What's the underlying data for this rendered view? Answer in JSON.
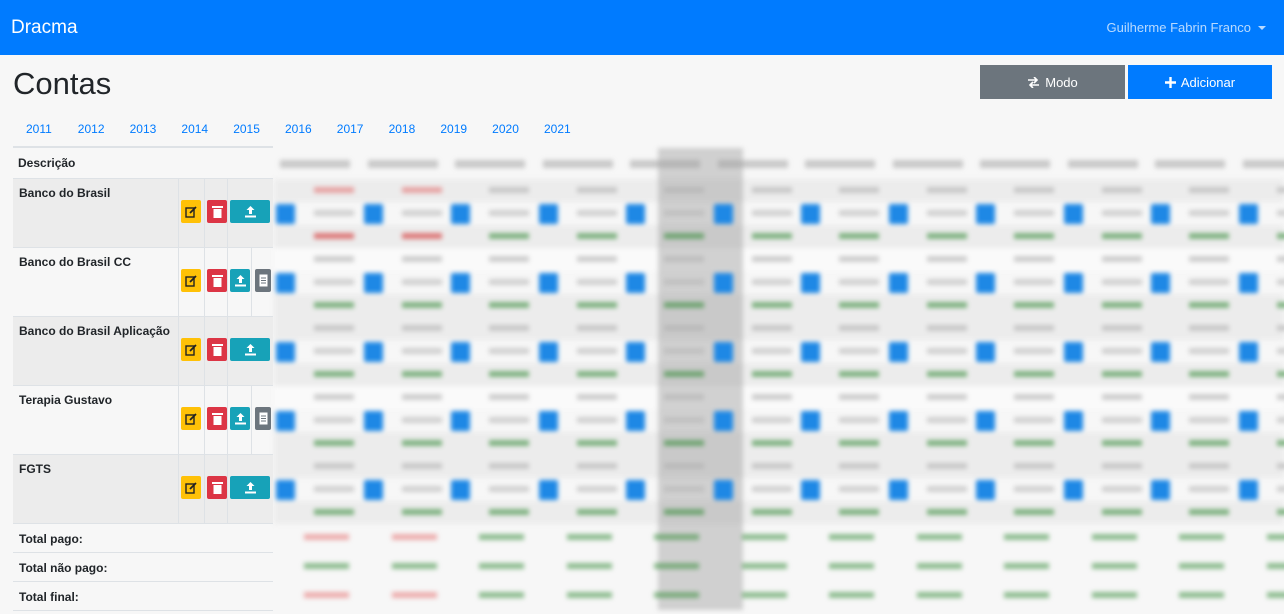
{
  "navbar": {
    "brand": "Dracma",
    "user": "Guilherme Fabrin Franco"
  },
  "page": {
    "title": "Contas"
  },
  "actions": {
    "modo_label": "Modo",
    "adicionar_label": "Adicionar"
  },
  "years": [
    "2011",
    "2012",
    "2013",
    "2014",
    "2015",
    "2016",
    "2017",
    "2018",
    "2019",
    "2020",
    "2021"
  ],
  "table": {
    "header": "Descrição",
    "accounts": [
      {
        "name": "Banco do Brasil",
        "has_doc": false
      },
      {
        "name": "Banco do Brasil CC",
        "has_doc": true
      },
      {
        "name": "Banco do Brasil Aplicação",
        "has_doc": false
      },
      {
        "name": "Terapia Gustavo",
        "has_doc": true
      },
      {
        "name": "FGTS",
        "has_doc": false
      }
    ],
    "totals": [
      "Total pago:",
      "Total não pago:",
      "Total final:"
    ]
  },
  "colors": {
    "primary": "#007bff",
    "secondary": "#6c757d",
    "warning": "#ffc107",
    "danger": "#dc3545",
    "info": "#17a2b8"
  }
}
